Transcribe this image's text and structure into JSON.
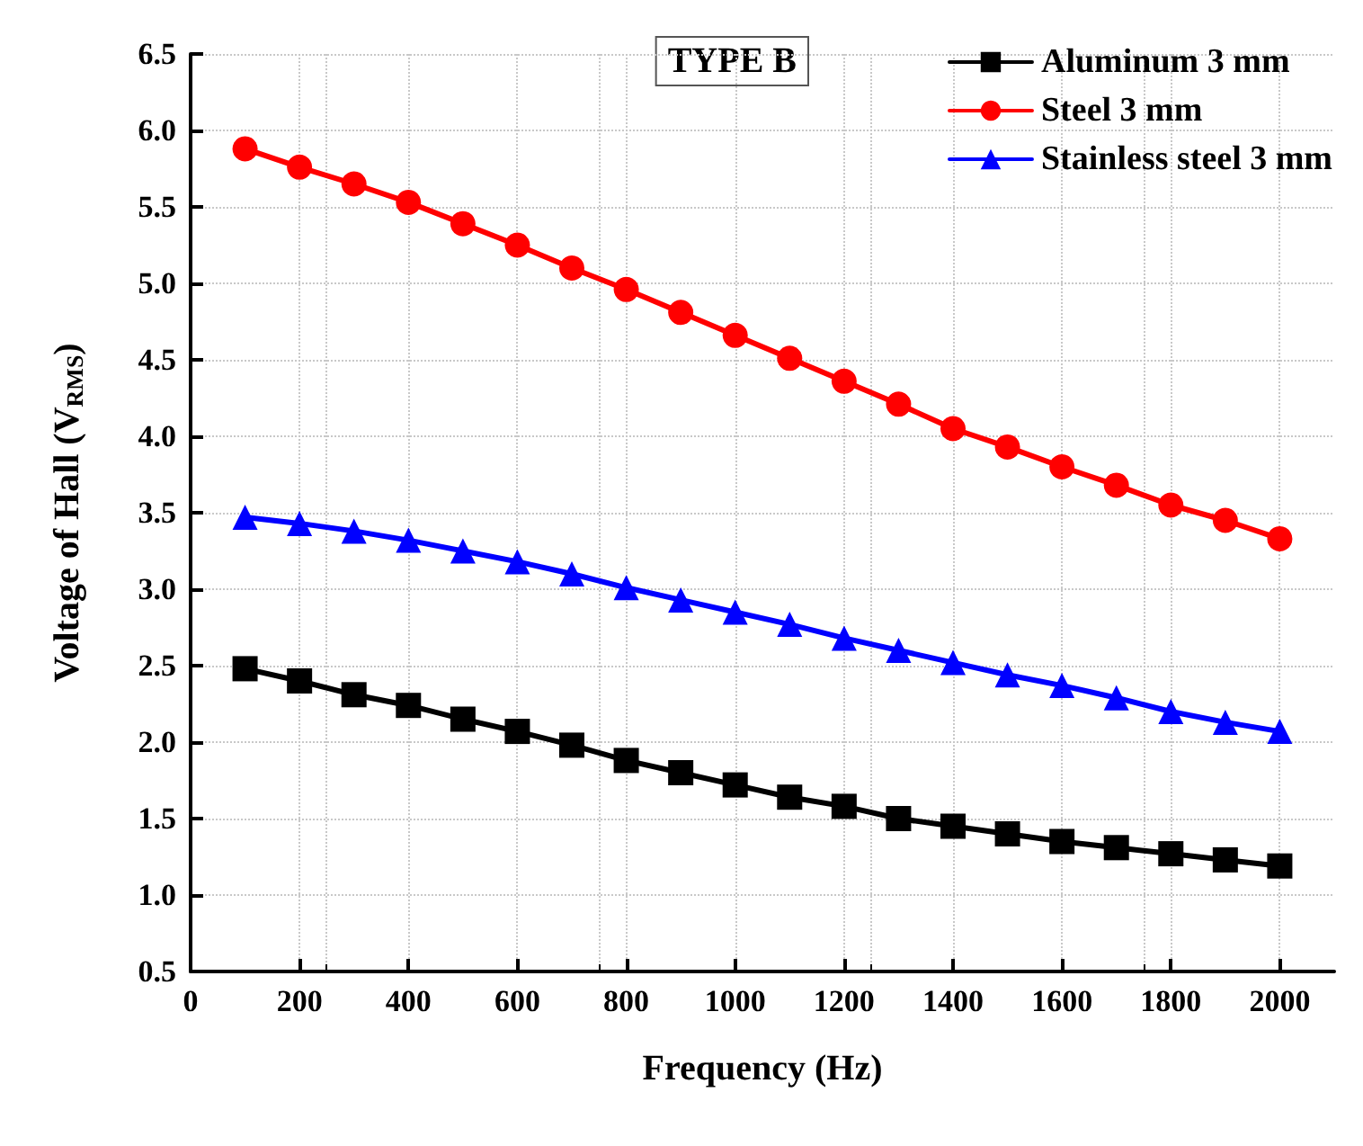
{
  "chart_data": {
    "type": "line",
    "xlabel": "Frequency (Hz)",
    "ylabel": "Voltage of Hall (V$_{RMS}$)",
    "legend_title": "TYPE B",
    "x": [
      100,
      200,
      300,
      400,
      500,
      600,
      700,
      800,
      900,
      1000,
      1100,
      1200,
      1300,
      1400,
      1500,
      1600,
      1700,
      1800,
      1900,
      2000
    ],
    "series": [
      {
        "name": "Aluminum 3 mm",
        "color": "#000000",
        "marker": "square",
        "values": [
          2.48,
          2.4,
          2.31,
          2.24,
          2.15,
          2.07,
          1.98,
          1.88,
          1.8,
          1.72,
          1.64,
          1.58,
          1.5,
          1.45,
          1.4,
          1.35,
          1.31,
          1.27,
          1.23,
          1.19
        ]
      },
      {
        "name": "Steel 3 mm",
        "color": "#ff0000",
        "marker": "circle",
        "values": [
          5.88,
          5.76,
          5.65,
          5.53,
          5.39,
          5.25,
          5.1,
          4.96,
          4.81,
          4.66,
          4.51,
          4.36,
          4.21,
          4.05,
          3.93,
          3.8,
          3.68,
          3.55,
          3.45,
          3.33
        ]
      },
      {
        "name": "Stainless steel 3 mm",
        "color": "#0000ff",
        "marker": "triangle",
        "values": [
          3.47,
          3.43,
          3.38,
          3.32,
          3.25,
          3.18,
          3.1,
          3.01,
          2.93,
          2.85,
          2.77,
          2.68,
          2.6,
          2.52,
          2.44,
          2.37,
          2.29,
          2.2,
          2.13,
          2.07
        ]
      }
    ],
    "xlim": [
      0,
      2100
    ],
    "xticks": [
      0,
      200,
      400,
      600,
      800,
      1000,
      1200,
      1400,
      1600,
      1800,
      2000
    ],
    "ylim": [
      0.5,
      6.5
    ],
    "yticks": [
      0.5,
      {
        "value": 1,
        "label": "1.0"
      },
      1.5,
      {
        "value": 2,
        "label": "2.0"
      },
      2.5,
      {
        "value": 3,
        "label": "3.0"
      },
      3.5,
      {
        "value": 4,
        "label": "4.0"
      },
      4.5,
      {
        "value": 5,
        "label": "5.0"
      },
      5.5,
      {
        "value": 6,
        "label": "6.0"
      },
      6.5
    ],
    "grid": true,
    "legend": "top right",
    "line_style": "solid"
  }
}
